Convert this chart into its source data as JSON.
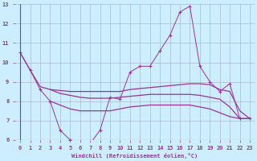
{
  "bg_color": "#cceeff",
  "line_color": "#993399",
  "xlim": [
    -0.5,
    23.5
  ],
  "ylim": [
    6,
    13
  ],
  "xticks": [
    0,
    1,
    2,
    3,
    4,
    5,
    6,
    7,
    8,
    9,
    10,
    11,
    12,
    13,
    14,
    15,
    16,
    17,
    18,
    19,
    20,
    21,
    22,
    23
  ],
  "yticks": [
    6,
    7,
    8,
    9,
    10,
    11,
    12,
    13
  ],
  "grid_color": "#aabbcc",
  "xlabel": "Windchill (Refroidissement éolien,°C)",
  "jagged": [
    10.5,
    9.6,
    8.6,
    8.0,
    6.5,
    6.0,
    5.9,
    5.8,
    6.5,
    8.2,
    8.1,
    9.5,
    9.8,
    9.8,
    10.6,
    11.4,
    12.6,
    12.9,
    9.8,
    9.0,
    8.5,
    8.9,
    7.1,
    7.1
  ],
  "smooth_upper": [
    10.5,
    9.6,
    8.75,
    8.6,
    8.55,
    8.5,
    8.5,
    8.5,
    8.5,
    8.5,
    8.5,
    8.6,
    8.65,
    8.7,
    8.75,
    8.8,
    8.85,
    8.9,
    8.9,
    8.85,
    8.6,
    8.5,
    7.5,
    7.1
  ],
  "smooth_mid": [
    null,
    null,
    null,
    8.6,
    8.4,
    8.3,
    8.2,
    8.15,
    8.15,
    8.15,
    8.2,
    8.25,
    8.3,
    8.35,
    8.35,
    8.35,
    8.35,
    8.35,
    8.3,
    8.2,
    8.1,
    7.7,
    7.1,
    7.1
  ],
  "smooth_lower": [
    null,
    null,
    null,
    8.0,
    7.8,
    7.6,
    7.5,
    7.5,
    7.5,
    7.5,
    7.6,
    7.7,
    7.75,
    7.8,
    7.8,
    7.8,
    7.8,
    7.8,
    7.7,
    7.6,
    7.4,
    7.2,
    7.1,
    7.1
  ]
}
